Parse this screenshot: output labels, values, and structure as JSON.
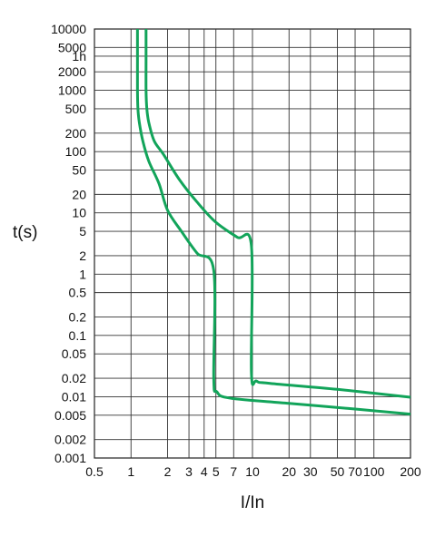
{
  "chart_data": {
    "type": "line",
    "title": "",
    "xlabel": "I/In",
    "ylabel": "t(s)",
    "x_scale": "log",
    "y_scale": "log",
    "xlim": [
      0.5,
      200
    ],
    "ylim": [
      0.001,
      10000
    ],
    "grid": true,
    "line_color": "#12a45a",
    "x_ticks": [
      {
        "value": 0.5,
        "label": "0.5"
      },
      {
        "value": 1,
        "label": "1"
      },
      {
        "value": 2,
        "label": "2"
      },
      {
        "value": 3,
        "label": "3"
      },
      {
        "value": 4,
        "label": "4"
      },
      {
        "value": 5,
        "label": "5"
      },
      {
        "value": 7,
        "label": "7"
      },
      {
        "value": 10,
        "label": "10"
      },
      {
        "value": 20,
        "label": "20"
      },
      {
        "value": 30,
        "label": "30"
      },
      {
        "value": 50,
        "label": "50"
      },
      {
        "value": 70,
        "label": "70"
      },
      {
        "value": 100,
        "label": "100"
      },
      {
        "value": 200,
        "label": "200"
      }
    ],
    "y_ticks": [
      {
        "value": 10000,
        "label": "10000"
      },
      {
        "value": 5000,
        "label": "5000"
      },
      {
        "value": 3600,
        "label": "1h"
      },
      {
        "value": 2000,
        "label": "2000"
      },
      {
        "value": 1000,
        "label": "1000"
      },
      {
        "value": 500,
        "label": "500"
      },
      {
        "value": 200,
        "label": "200"
      },
      {
        "value": 100,
        "label": "100"
      },
      {
        "value": 50,
        "label": "50"
      },
      {
        "value": 20,
        "label": "20"
      },
      {
        "value": 10,
        "label": "10"
      },
      {
        "value": 5,
        "label": "5"
      },
      {
        "value": 2,
        "label": "2"
      },
      {
        "value": 1,
        "label": "1"
      },
      {
        "value": 0.5,
        "label": "0.5"
      },
      {
        "value": 0.2,
        "label": "0.2"
      },
      {
        "value": 0.1,
        "label": "0.1"
      },
      {
        "value": 0.05,
        "label": "0.05"
      },
      {
        "value": 0.02,
        "label": "0.02"
      },
      {
        "value": 0.01,
        "label": "0.01"
      },
      {
        "value": 0.005,
        "label": "0.005"
      },
      {
        "value": 0.002,
        "label": "0.002"
      },
      {
        "value": 0.001,
        "label": "0.001"
      }
    ],
    "series": [
      {
        "points": [
          [
            1.13,
            10000
          ],
          [
            1.13,
            3000
          ],
          [
            1.13,
            1000
          ],
          [
            1.14,
            500
          ],
          [
            1.17,
            300
          ],
          [
            1.25,
            150
          ],
          [
            1.4,
            70
          ],
          [
            1.7,
            30
          ],
          [
            2.0,
            11
          ],
          [
            2.6,
            5
          ],
          [
            3.5,
            2.2
          ],
          [
            4.8,
            1.15
          ],
          [
            4.8,
            0.02
          ],
          [
            5.1,
            0.012
          ],
          [
            6.5,
            0.0095
          ],
          [
            20,
            0.0078
          ],
          [
            70,
            0.0063
          ],
          [
            200,
            0.0052
          ]
        ]
      },
      {
        "points": [
          [
            1.33,
            10000
          ],
          [
            1.33,
            3000
          ],
          [
            1.33,
            1000
          ],
          [
            1.35,
            500
          ],
          [
            1.4,
            300
          ],
          [
            1.55,
            150
          ],
          [
            1.85,
            90
          ],
          [
            2.5,
            35
          ],
          [
            3.5,
            15
          ],
          [
            5.0,
            7
          ],
          [
            7.5,
            4
          ],
          [
            9.8,
            2.9
          ],
          [
            9.8,
            0.025
          ],
          [
            10.8,
            0.018
          ],
          [
            14,
            0.0165
          ],
          [
            50,
            0.0132
          ],
          [
            200,
            0.0098
          ]
        ]
      }
    ]
  }
}
